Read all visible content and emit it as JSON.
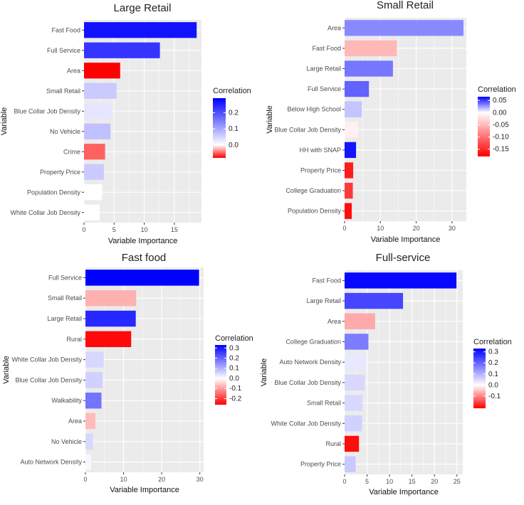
{
  "chart_data": [
    {
      "type": "bar",
      "orientation": "horizontal",
      "title": "Large Retail",
      "xlabel": "Variable Importance",
      "ylabel": "Variable",
      "xlim": [
        0,
        19.5
      ],
      "xticks": [
        0,
        5,
        10,
        15
      ],
      "categories": [
        "Fast Food",
        "Full Service",
        "Area",
        "Small Retail",
        "Blue Collar Job Density",
        "No Vehicle",
        "Crime",
        "Property Price",
        "Population Density",
        "White Collar Job Density"
      ],
      "values": [
        18.7,
        12.6,
        6.0,
        5.4,
        4.6,
        4.4,
        3.5,
        3.3,
        3.0,
        2.6
      ],
      "color_values": [
        0.27,
        0.23,
        -0.08,
        0.06,
        0.03,
        0.07,
        -0.05,
        0.06,
        0.0,
        0.0
      ],
      "legend": {
        "title": "Correlation",
        "placement": "right",
        "range": [
          -0.08,
          0.29
        ],
        "ticks": [
          0.2,
          0.1,
          0.0
        ]
      },
      "grid": true
    },
    {
      "type": "bar",
      "orientation": "horizontal",
      "title": "Small Retail",
      "xlabel": "Variable Importance",
      "ylabel": "Variable",
      "xlim": [
        0,
        34
      ],
      "xticks": [
        0,
        10,
        20,
        30
      ],
      "categories": [
        "Area",
        "Fast Food",
        "Large Retail",
        "Full Service",
        "Below High School",
        "Blue Collar Job Density",
        "HH with SNAP",
        "Property Price",
        "College Graduation",
        "Population Density"
      ],
      "values": [
        33.2,
        14.6,
        13.5,
        6.8,
        4.8,
        3.8,
        3.2,
        2.4,
        2.3,
        2.0
      ],
      "color_values": [
        0.03,
        -0.05,
        0.035,
        0.04,
        0.015,
        -0.01,
        0.06,
        -0.16,
        -0.14,
        -0.17
      ],
      "legend": {
        "title": "Correlation",
        "placement": "right",
        "range": [
          -0.18,
          0.065
        ],
        "ticks": [
          0.05,
          0.0,
          -0.05,
          -0.1,
          -0.15
        ]
      },
      "grid": true
    },
    {
      "type": "bar",
      "orientation": "horizontal",
      "title": "Fast food",
      "xlabel": "Variable Importance",
      "ylabel": "Variable",
      "xlim": [
        0,
        31
      ],
      "xticks": [
        0,
        10,
        20,
        30
      ],
      "categories": [
        "Full Service",
        "Small Retail",
        "Large Retail",
        "Rural",
        "White Collar Job Density",
        "Blue Collar Job Density",
        "Walkability",
        "Area",
        "No Vehicle",
        "Auto Network Density"
      ],
      "values": [
        29.8,
        13.3,
        13.2,
        12.0,
        4.8,
        4.5,
        4.2,
        2.6,
        2.0,
        1.5
      ],
      "color_values": [
        0.33,
        -0.08,
        0.28,
        -0.25,
        0.05,
        0.06,
        0.18,
        -0.07,
        0.05,
        0.01
      ],
      "legend": {
        "title": "Correlation",
        "placement": "right",
        "range": [
          -0.26,
          0.33
        ],
        "ticks": [
          0.3,
          0.2,
          0.1,
          0.0,
          -0.1,
          -0.2
        ]
      },
      "grid": true
    },
    {
      "type": "bar",
      "orientation": "horizontal",
      "title": "Full-service",
      "xlabel": "Variable Importance",
      "ylabel": "Variable",
      "xlim": [
        0,
        26.3
      ],
      "xticks": [
        0,
        5,
        10,
        15,
        20,
        25
      ],
      "categories": [
        "Fast Food",
        "Large Retail",
        "Area",
        "College Graduation",
        "Auto Network Density",
        "Blue Collar Job Density",
        "Small Retail",
        "White Collar Job Density",
        "Rural",
        "Property Price"
      ],
      "values": [
        24.9,
        13.0,
        6.8,
        5.3,
        4.8,
        4.5,
        4.0,
        3.9,
        3.2,
        2.5
      ],
      "color_values": [
        0.32,
        0.24,
        -0.07,
        0.17,
        0.03,
        0.05,
        0.05,
        0.06,
        -0.2,
        0.07
      ],
      "legend": {
        "title": "Correlation",
        "placement": "right",
        "range": [
          -0.21,
          0.33
        ],
        "ticks": [
          0.3,
          0.2,
          0.1,
          0.0,
          -0.1
        ]
      },
      "grid": true
    }
  ],
  "colors": {
    "low": "#ff0000",
    "mid": "#ffffff",
    "high": "#0000ff",
    "panel_bg": "#ebebeb",
    "grid": "#ffffff"
  }
}
